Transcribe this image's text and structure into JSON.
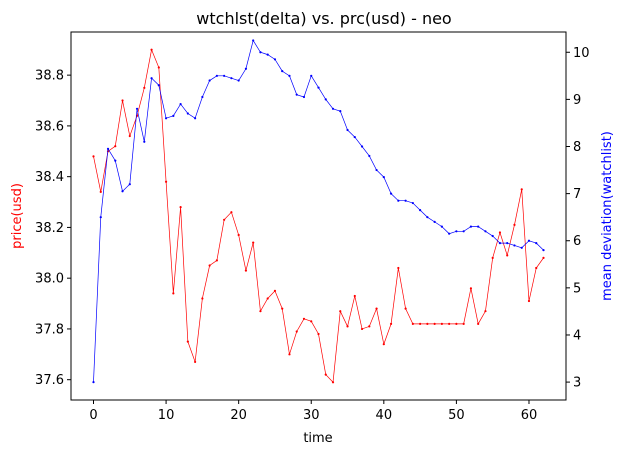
{
  "chart_data": {
    "type": "line",
    "title": "wtchlst(delta) vs. prc(usd) - neo",
    "xlabel": "time",
    "ylabel_left": "price(usd)",
    "ylabel_right": "mean deviation(watchlist)",
    "xlim": [
      -3.1,
      65.1
    ],
    "ylim_left": [
      37.52,
      38.97
    ],
    "ylim_right": [
      2.62,
      10.43
    ],
    "x_ticks": [
      0,
      10,
      20,
      30,
      40,
      50,
      60
    ],
    "y_ticks_left": [
      37.6,
      37.8,
      38.0,
      38.2,
      38.4,
      38.6,
      38.8
    ],
    "y_ticks_right": [
      3,
      4,
      5,
      6,
      7,
      8,
      9,
      10
    ],
    "grid": false,
    "series": [
      {
        "name": "price(usd)",
        "axis": "left",
        "color": "#ff0000",
        "x": [
          0,
          1,
          2,
          3,
          4,
          5,
          6,
          7,
          8,
          9,
          10,
          11,
          12,
          13,
          14,
          15,
          16,
          17,
          18,
          19,
          20,
          21,
          22,
          23,
          24,
          25,
          26,
          27,
          28,
          29,
          30,
          31,
          32,
          33,
          34,
          35,
          36,
          37,
          38,
          39,
          40,
          41,
          42,
          43,
          44,
          45,
          46,
          47,
          48,
          49,
          50,
          51,
          52,
          53,
          54,
          55,
          56,
          57,
          58,
          59,
          60,
          61,
          62
        ],
        "values": [
          38.48,
          38.34,
          38.5,
          38.52,
          38.7,
          38.56,
          38.64,
          38.75,
          38.9,
          38.83,
          38.38,
          37.94,
          38.28,
          37.75,
          37.67,
          37.92,
          38.05,
          38.07,
          38.23,
          38.26,
          38.17,
          38.03,
          38.14,
          37.87,
          37.92,
          37.95,
          37.88,
          37.7,
          37.79,
          37.84,
          37.83,
          37.78,
          37.62,
          37.59,
          37.87,
          37.81,
          37.93,
          37.8,
          37.81,
          37.88,
          37.74,
          37.82,
          38.04,
          37.88,
          37.82,
          37.82,
          37.82,
          37.82,
          37.82,
          37.82,
          37.82,
          37.82,
          37.96,
          37.82,
          37.87,
          38.08,
          38.18,
          38.09,
          38.21,
          38.35,
          37.91,
          38.04,
          38.08
        ]
      },
      {
        "name": "mean deviation(watchlist)",
        "axis": "right",
        "color": "#0000ff",
        "x": [
          0,
          1,
          2,
          3,
          4,
          5,
          6,
          7,
          8,
          9,
          10,
          11,
          12,
          13,
          14,
          15,
          16,
          17,
          18,
          19,
          20,
          21,
          22,
          23,
          24,
          25,
          26,
          27,
          28,
          29,
          30,
          31,
          32,
          33,
          34,
          35,
          36,
          37,
          38,
          39,
          40,
          41,
          42,
          43,
          44,
          45,
          46,
          47,
          48,
          49,
          50,
          51,
          52,
          53,
          54,
          55,
          56,
          57,
          58,
          59,
          60,
          61,
          62
        ],
        "values": [
          3.0,
          6.5,
          7.95,
          7.7,
          7.05,
          7.2,
          8.8,
          8.1,
          9.45,
          9.3,
          8.6,
          8.65,
          8.9,
          8.7,
          8.6,
          9.05,
          9.4,
          9.5,
          9.5,
          9.45,
          9.4,
          9.65,
          10.25,
          10.0,
          9.95,
          9.85,
          9.6,
          9.5,
          9.1,
          9.05,
          9.5,
          9.25,
          9.0,
          8.8,
          8.75,
          8.35,
          8.2,
          8.0,
          7.8,
          7.5,
          7.35,
          7.0,
          6.85,
          6.85,
          6.8,
          6.65,
          6.5,
          6.4,
          6.3,
          6.15,
          6.2,
          6.2,
          6.3,
          6.3,
          6.2,
          6.1,
          5.95,
          5.95,
          5.9,
          5.85,
          6.0,
          5.95,
          5.8
        ]
      }
    ]
  }
}
